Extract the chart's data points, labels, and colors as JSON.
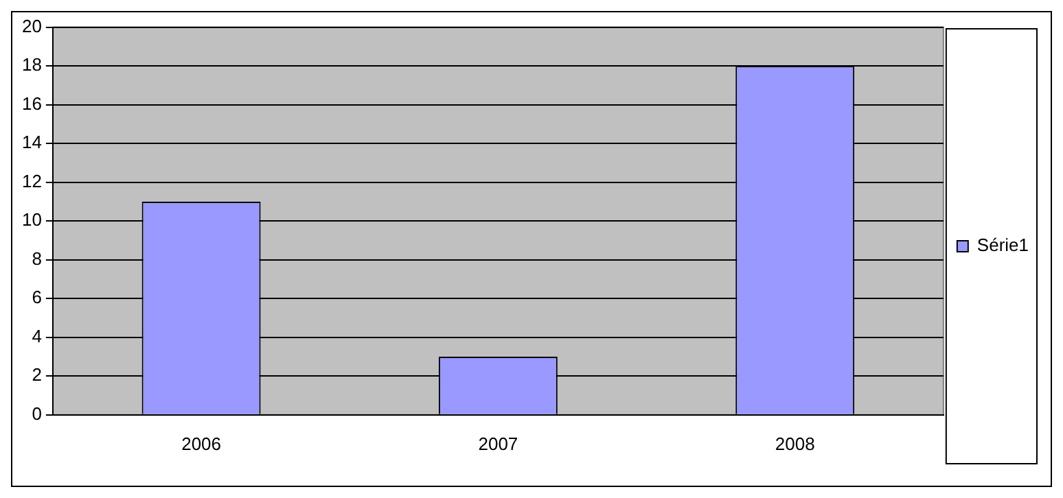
{
  "chart_data": {
    "type": "bar",
    "categories": [
      "2006",
      "2007",
      "2008"
    ],
    "series": [
      {
        "name": "Série1",
        "color": "#9999ff",
        "values": [
          11,
          3,
          18
        ]
      }
    ],
    "ylim": [
      0,
      20
    ],
    "yticks": [
      0,
      2,
      4,
      6,
      8,
      10,
      12,
      14,
      16,
      18,
      20
    ],
    "grid": "y",
    "legend": "right"
  }
}
